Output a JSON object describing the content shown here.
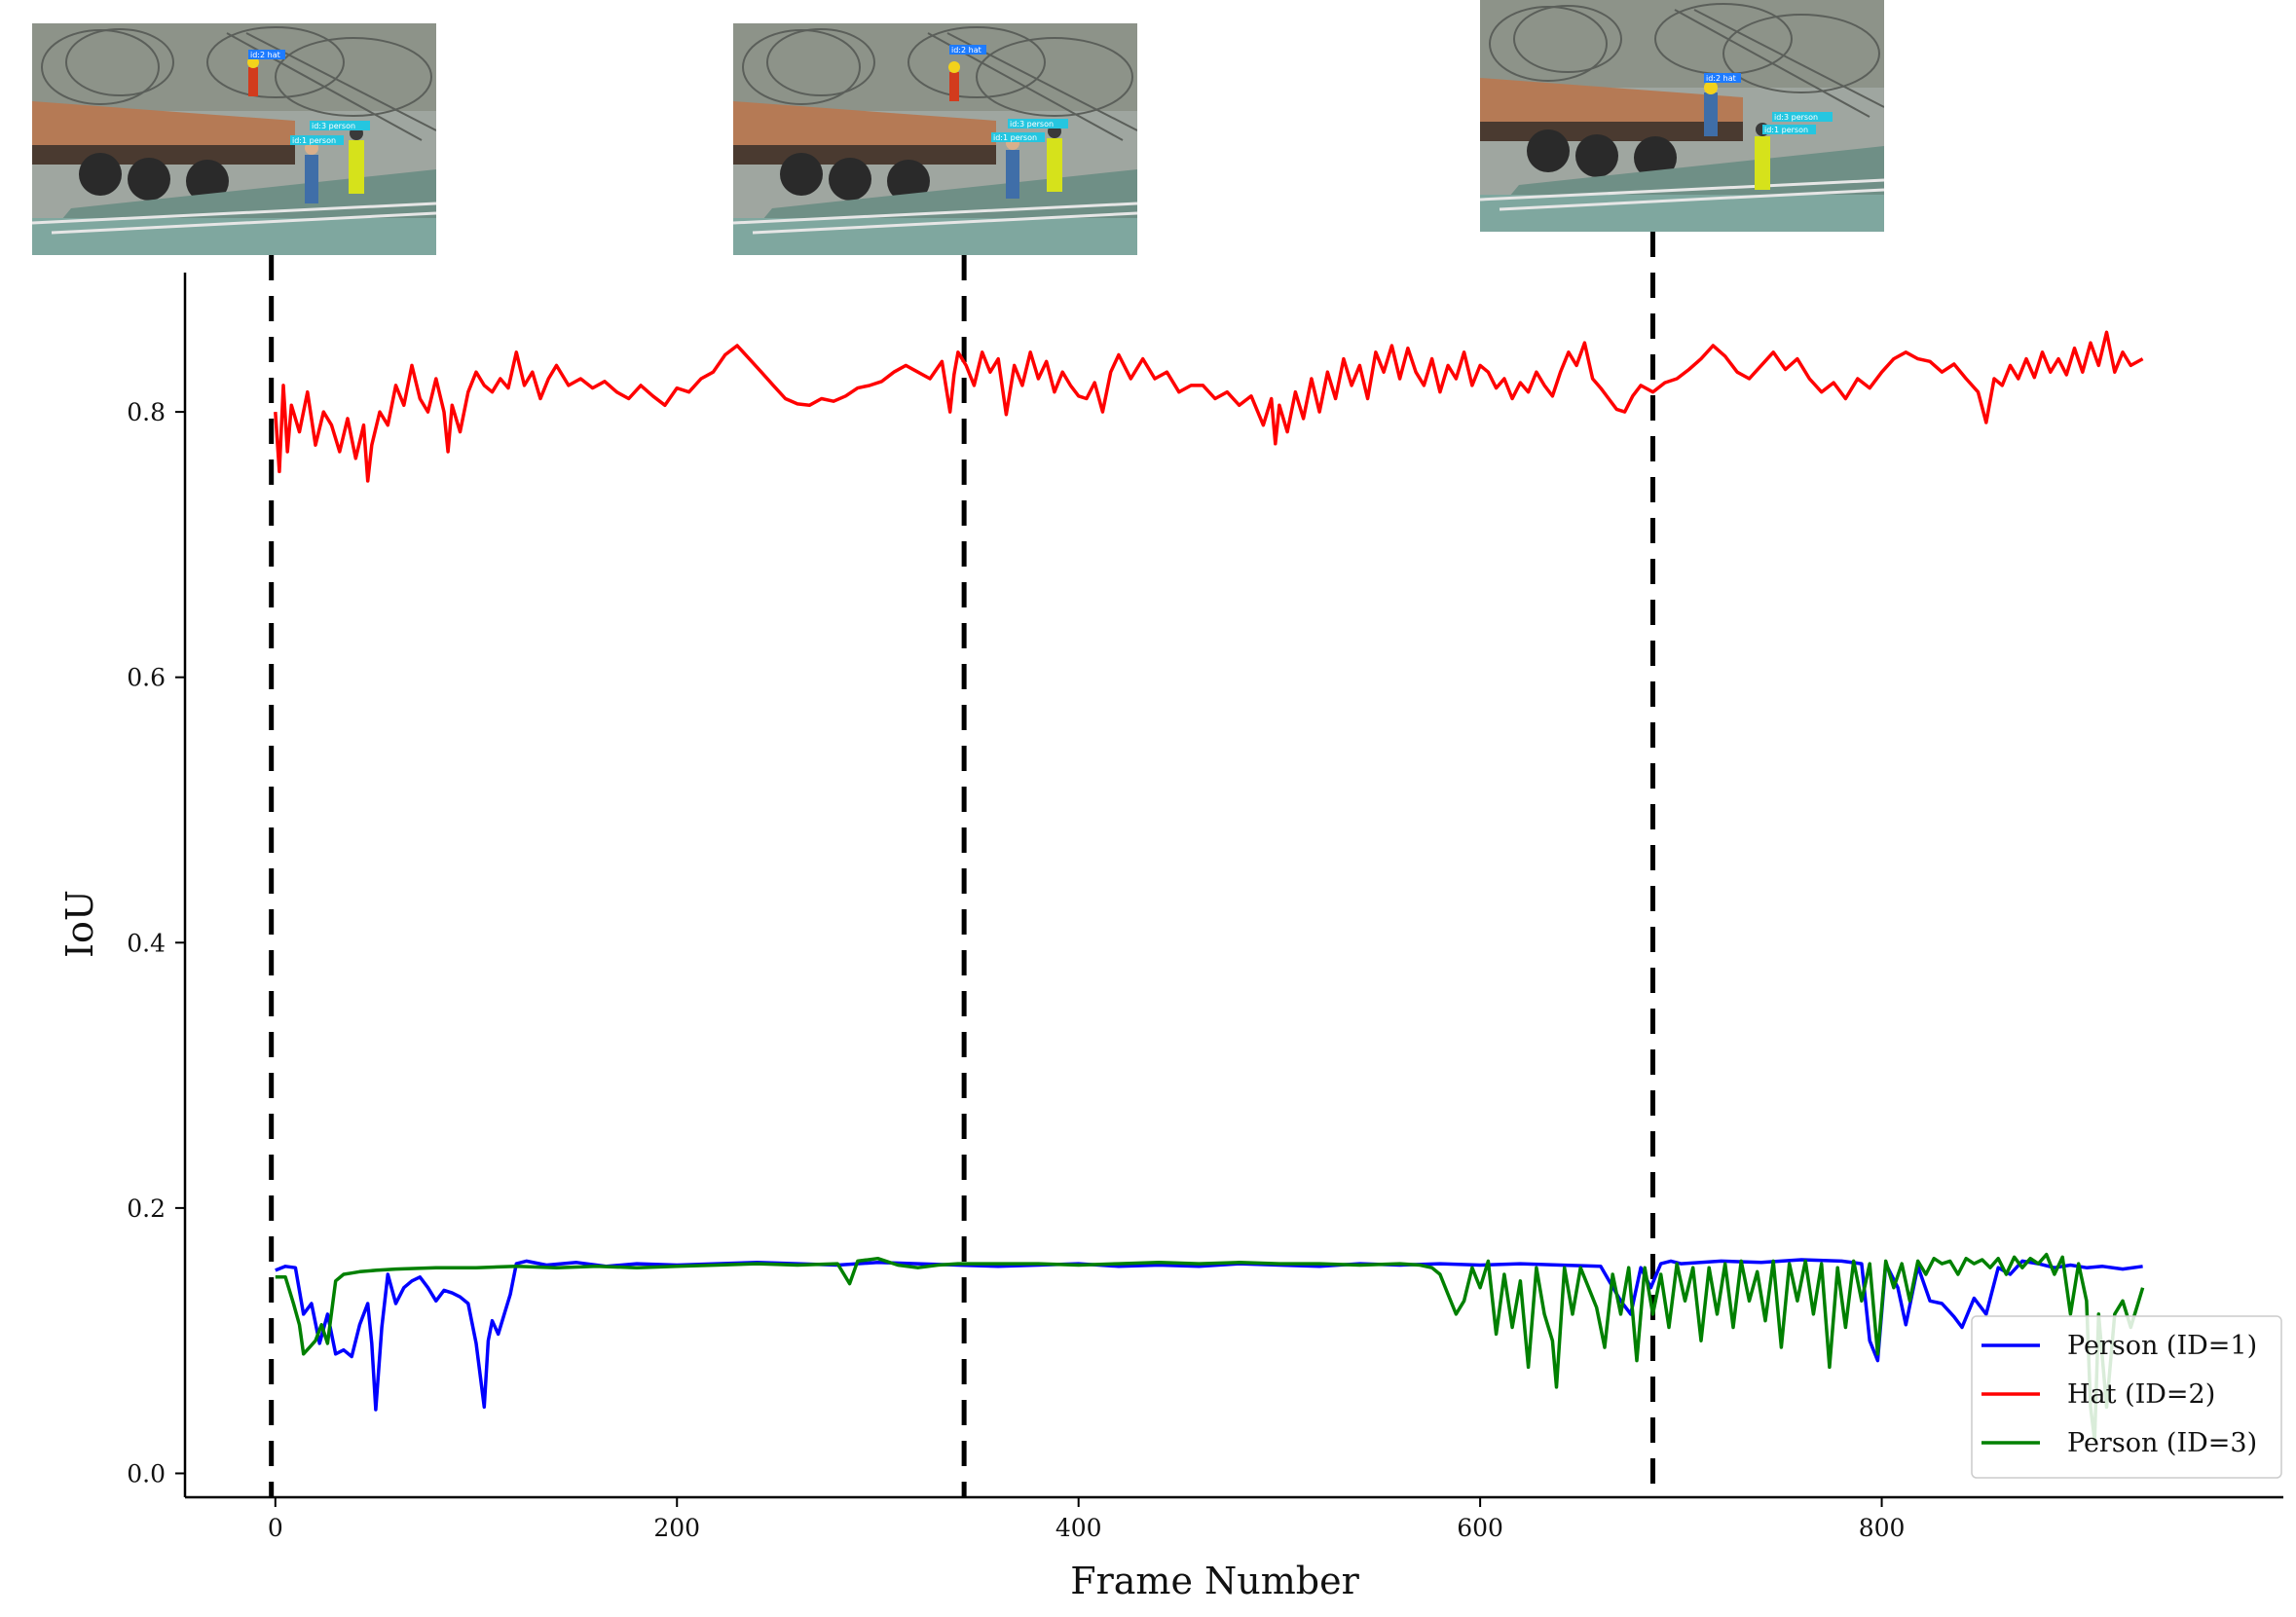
{
  "chart_data": {
    "type": "line",
    "xlabel": "Frame Number",
    "ylabel": "IoU",
    "xlim": [
      -45,
      1000
    ],
    "ylim": [
      -0.018,
      0.905
    ],
    "x_ticks": [
      0,
      200,
      400,
      600,
      800
    ],
    "y_ticks": [
      0.0,
      0.2,
      0.4,
      0.6,
      0.8
    ],
    "y_tick_labels": [
      "0.0",
      "0.2",
      "0.4",
      "0.6",
      "0.8"
    ],
    "grid": false,
    "legend_position": "bottom-right",
    "vertical_markers": [
      {
        "x": -2,
        "style": "dashed",
        "color": "#000000"
      },
      {
        "x": 343,
        "style": "dashed",
        "color": "#000000"
      },
      {
        "x": 686,
        "style": "dashed",
        "color": "#000000"
      }
    ],
    "series": [
      {
        "name": "Person (ID=1)",
        "color": "#0000ff",
        "x": [
          0,
          5,
          10,
          14,
          18,
          22,
          26,
          30,
          34,
          38,
          42,
          46,
          48,
          50,
          53,
          56,
          60,
          64,
          68,
          72,
          76,
          80,
          84,
          88,
          92,
          96,
          100,
          104,
          106,
          108,
          111,
          114,
          117,
          120,
          125,
          135,
          150,
          165,
          180,
          200,
          220,
          240,
          260,
          280,
          300,
          320,
          340,
          360,
          380,
          400,
          420,
          440,
          460,
          480,
          500,
          520,
          540,
          560,
          580,
          600,
          620,
          640,
          660,
          670,
          675,
          680,
          685,
          690,
          695,
          700,
          720,
          740,
          760,
          780,
          790,
          794,
          798,
          802,
          808,
          812,
          818,
          824,
          830,
          836,
          840,
          846,
          852,
          858,
          864,
          870,
          878,
          886,
          894,
          902,
          910,
          920,
          930
        ],
        "y": [
          0.153,
          0.156,
          0.155,
          0.12,
          0.128,
          0.098,
          0.12,
          0.09,
          0.093,
          0.088,
          0.112,
          0.128,
          0.098,
          0.048,
          0.11,
          0.15,
          0.128,
          0.14,
          0.145,
          0.148,
          0.14,
          0.13,
          0.138,
          0.136,
          0.133,
          0.128,
          0.098,
          0.05,
          0.1,
          0.115,
          0.105,
          0.12,
          0.135,
          0.158,
          0.16,
          0.157,
          0.159,
          0.156,
          0.158,
          0.157,
          0.158,
          0.159,
          0.158,
          0.157,
          0.159,
          0.158,
          0.157,
          0.156,
          0.157,
          0.158,
          0.156,
          0.157,
          0.156,
          0.158,
          0.157,
          0.156,
          0.158,
          0.157,
          0.158,
          0.157,
          0.158,
          0.157,
          0.156,
          0.13,
          0.12,
          0.155,
          0.14,
          0.158,
          0.16,
          0.158,
          0.16,
          0.159,
          0.161,
          0.16,
          0.158,
          0.1,
          0.085,
          0.158,
          0.14,
          0.112,
          0.156,
          0.13,
          0.128,
          0.118,
          0.11,
          0.132,
          0.12,
          0.155,
          0.15,
          0.16,
          0.158,
          0.155,
          0.157,
          0.155,
          0.156,
          0.154,
          0.156
        ]
      },
      {
        "name": "Hat (ID=2)",
        "color": "#ff0000",
        "x": [
          0,
          2,
          4,
          6,
          8,
          12,
          16,
          20,
          24,
          28,
          32,
          36,
          40,
          44,
          46,
          48,
          52,
          56,
          60,
          64,
          68,
          72,
          76,
          80,
          84,
          86,
          88,
          92,
          96,
          100,
          104,
          108,
          112,
          116,
          120,
          124,
          128,
          132,
          136,
          140,
          146,
          152,
          158,
          164,
          170,
          176,
          182,
          188,
          194,
          200,
          206,
          212,
          218,
          224,
          230,
          236,
          242,
          248,
          254,
          260,
          266,
          272,
          278,
          284,
          290,
          296,
          302,
          308,
          314,
          320,
          326,
          332,
          336,
          338,
          340,
          344,
          348,
          352,
          356,
          360,
          364,
          368,
          372,
          376,
          380,
          384,
          388,
          392,
          396,
          400,
          404,
          408,
          412,
          416,
          420,
          426,
          432,
          438,
          444,
          450,
          456,
          462,
          468,
          474,
          480,
          486,
          492,
          496,
          498,
          500,
          504,
          508,
          512,
          516,
          520,
          524,
          528,
          532,
          536,
          540,
          544,
          548,
          552,
          556,
          560,
          564,
          568,
          572,
          576,
          580,
          584,
          588,
          592,
          596,
          600,
          604,
          608,
          612,
          616,
          620,
          624,
          628,
          632,
          636,
          640,
          644,
          648,
          652,
          656,
          660,
          664,
          668,
          672,
          676,
          680,
          686,
          692,
          698,
          704,
          710,
          716,
          722,
          728,
          734,
          740,
          746,
          752,
          758,
          764,
          770,
          776,
          782,
          788,
          794,
          800,
          806,
          812,
          818,
          824,
          830,
          836,
          842,
          848,
          852,
          856,
          860,
          864,
          868,
          872,
          876,
          880,
          884,
          888,
          892,
          896,
          900,
          904,
          908,
          912,
          916,
          920,
          924,
          930
        ],
        "y": [
          0.8,
          0.755,
          0.82,
          0.77,
          0.805,
          0.785,
          0.815,
          0.775,
          0.8,
          0.79,
          0.77,
          0.795,
          0.765,
          0.79,
          0.748,
          0.775,
          0.8,
          0.79,
          0.82,
          0.805,
          0.835,
          0.81,
          0.8,
          0.825,
          0.8,
          0.77,
          0.805,
          0.785,
          0.815,
          0.83,
          0.82,
          0.815,
          0.825,
          0.818,
          0.845,
          0.82,
          0.83,
          0.81,
          0.825,
          0.835,
          0.82,
          0.825,
          0.818,
          0.823,
          0.815,
          0.81,
          0.82,
          0.812,
          0.805,
          0.818,
          0.815,
          0.825,
          0.83,
          0.843,
          0.85,
          0.84,
          0.83,
          0.82,
          0.81,
          0.806,
          0.805,
          0.81,
          0.808,
          0.812,
          0.818,
          0.82,
          0.823,
          0.83,
          0.835,
          0.83,
          0.825,
          0.838,
          0.8,
          0.828,
          0.845,
          0.835,
          0.82,
          0.845,
          0.83,
          0.84,
          0.798,
          0.835,
          0.82,
          0.845,
          0.825,
          0.838,
          0.815,
          0.83,
          0.82,
          0.812,
          0.81,
          0.822,
          0.8,
          0.83,
          0.843,
          0.825,
          0.84,
          0.825,
          0.83,
          0.815,
          0.82,
          0.82,
          0.81,
          0.815,
          0.805,
          0.812,
          0.79,
          0.81,
          0.776,
          0.805,
          0.785,
          0.815,
          0.795,
          0.825,
          0.8,
          0.83,
          0.81,
          0.84,
          0.82,
          0.835,
          0.81,
          0.845,
          0.83,
          0.85,
          0.825,
          0.848,
          0.83,
          0.82,
          0.84,
          0.815,
          0.835,
          0.825,
          0.845,
          0.82,
          0.835,
          0.83,
          0.818,
          0.825,
          0.81,
          0.822,
          0.815,
          0.83,
          0.82,
          0.812,
          0.83,
          0.845,
          0.835,
          0.852,
          0.825,
          0.818,
          0.81,
          0.802,
          0.8,
          0.812,
          0.82,
          0.815,
          0.822,
          0.825,
          0.832,
          0.84,
          0.85,
          0.842,
          0.83,
          0.825,
          0.835,
          0.845,
          0.832,
          0.84,
          0.825,
          0.815,
          0.822,
          0.81,
          0.825,
          0.818,
          0.83,
          0.84,
          0.845,
          0.84,
          0.838,
          0.83,
          0.836,
          0.825,
          0.815,
          0.792,
          0.825,
          0.82,
          0.835,
          0.825,
          0.84,
          0.826,
          0.845,
          0.83,
          0.84,
          0.828,
          0.848,
          0.83,
          0.852,
          0.835,
          0.86,
          0.83,
          0.845,
          0.835,
          0.84
        ]
      },
      {
        "name": "Person (ID=3)",
        "color": "#008000",
        "x": [
          0,
          5,
          9,
          12,
          14,
          17,
          20,
          23,
          26,
          30,
          34,
          38,
          42,
          50,
          60,
          80,
          100,
          120,
          140,
          160,
          180,
          200,
          220,
          240,
          260,
          280,
          286,
          290,
          300,
          310,
          320,
          330,
          340,
          360,
          380,
          400,
          420,
          440,
          460,
          480,
          500,
          520,
          540,
          560,
          570,
          576,
          580,
          584,
          588,
          592,
          596,
          600,
          604,
          608,
          612,
          616,
          620,
          624,
          628,
          632,
          636,
          638,
          642,
          646,
          650,
          654,
          658,
          662,
          666,
          670,
          674,
          678,
          682,
          686,
          690,
          694,
          698,
          702,
          706,
          710,
          714,
          718,
          722,
          726,
          730,
          734,
          738,
          742,
          746,
          750,
          754,
          758,
          762,
          766,
          770,
          774,
          778,
          782,
          786,
          790,
          794,
          798,
          802,
          806,
          810,
          814,
          818,
          822,
          826,
          830,
          834,
          838,
          842,
          846,
          850,
          854,
          858,
          862,
          866,
          870,
          874,
          878,
          882,
          886,
          890,
          894,
          898,
          902,
          904,
          906,
          908,
          912,
          916,
          920,
          924,
          930
        ],
        "y": [
          0.148,
          0.148,
          0.128,
          0.112,
          0.09,
          0.095,
          0.1,
          0.112,
          0.098,
          0.145,
          0.15,
          0.151,
          0.152,
          0.153,
          0.154,
          0.155,
          0.155,
          0.156,
          0.155,
          0.156,
          0.155,
          0.156,
          0.157,
          0.158,
          0.157,
          0.158,
          0.143,
          0.16,
          0.162,
          0.157,
          0.155,
          0.157,
          0.158,
          0.158,
          0.158,
          0.157,
          0.158,
          0.159,
          0.158,
          0.159,
          0.158,
          0.158,
          0.157,
          0.158,
          0.157,
          0.155,
          0.15,
          0.135,
          0.12,
          0.13,
          0.155,
          0.14,
          0.16,
          0.105,
          0.15,
          0.11,
          0.145,
          0.08,
          0.155,
          0.12,
          0.1,
          0.065,
          0.155,
          0.12,
          0.155,
          0.14,
          0.125,
          0.095,
          0.15,
          0.12,
          0.155,
          0.085,
          0.155,
          0.12,
          0.15,
          0.11,
          0.158,
          0.13,
          0.155,
          0.1,
          0.155,
          0.12,
          0.158,
          0.11,
          0.16,
          0.13,
          0.152,
          0.115,
          0.16,
          0.095,
          0.158,
          0.13,
          0.16,
          0.12,
          0.158,
          0.08,
          0.155,
          0.11,
          0.16,
          0.13,
          0.158,
          0.09,
          0.16,
          0.14,
          0.158,
          0.13,
          0.16,
          0.15,
          0.162,
          0.158,
          0.16,
          0.15,
          0.162,
          0.158,
          0.161,
          0.155,
          0.162,
          0.15,
          0.163,
          0.155,
          0.162,
          0.158,
          0.165,
          0.15,
          0.163,
          0.12,
          0.158,
          0.13,
          0.05,
          0.025,
          0.12,
          0.05,
          0.12,
          0.13,
          0.11,
          0.14
        ]
      }
    ],
    "thumbnails": [
      {
        "label_hat": "id:2 hat",
        "label_person_a": "id:1 person",
        "label_person_b": "id:3 person"
      },
      {
        "label_hat": "id:2 hat",
        "label_person_a": "id:1 person",
        "label_person_b": "id:3 person"
      },
      {
        "label_hat": "id:2 hat",
        "label_person_a": "id:1 person",
        "label_person_b": "id:3 person"
      }
    ]
  }
}
